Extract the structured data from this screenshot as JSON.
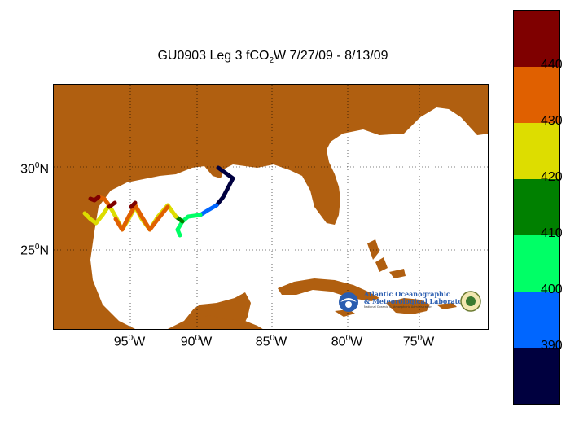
{
  "title": {
    "prefix": "GU0903 Leg 3 fCO",
    "sub": "2",
    "suffix": "W 7/27/09 - 8/13/09"
  },
  "lat_labels": [
    {
      "deg": "30",
      "sup": "0",
      "hem": "N"
    },
    {
      "deg": "25",
      "sup": "0",
      "hem": "N"
    }
  ],
  "lon_labels": [
    {
      "deg": "95",
      "sup": "0",
      "hem": "W"
    },
    {
      "deg": "90",
      "sup": "0",
      "hem": "W"
    },
    {
      "deg": "85",
      "sup": "0",
      "hem": "W"
    },
    {
      "deg": "80",
      "sup": "0",
      "hem": "W"
    },
    {
      "deg": "75",
      "sup": "0",
      "hem": "W"
    }
  ],
  "colorbar": {
    "range": [
      380,
      450
    ],
    "segments": [
      {
        "from": 380,
        "to": 390,
        "color": "#00003f"
      },
      {
        "from": 390,
        "to": 400,
        "color": "#0066ff"
      },
      {
        "from": 400,
        "to": 410,
        "color": "#00ff66"
      },
      {
        "from": 410,
        "to": 420,
        "color": "#008000"
      },
      {
        "from": 420,
        "to": 430,
        "color": "#dddd00"
      },
      {
        "from": 430,
        "to": 440,
        "color": "#e06000"
      },
      {
        "from": 440,
        "to": 450,
        "color": "#7f0000"
      }
    ],
    "tick_labels": [
      "440",
      "430",
      "420",
      "410",
      "400",
      "390"
    ]
  },
  "logo": {
    "line1": "Atlantic Oceanographic",
    "line2": "& Meteorological Laboratory",
    "subtitle": "National Oceanic & Atmospheric Administration"
  },
  "colors": {
    "land": "#b05f10",
    "water": "#ffffff",
    "grid": "#000000"
  }
}
